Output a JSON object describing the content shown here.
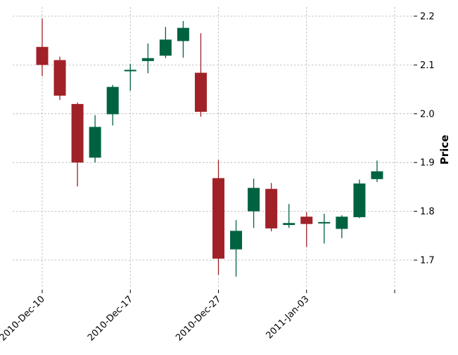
{
  "chart_data": {
    "type": "candlestick",
    "title": "",
    "xlabel": "",
    "ylabel": "Price",
    "y_axis_side": "right",
    "ylim": [
      1.64,
      2.23
    ],
    "yticks": [
      1.7,
      1.8,
      1.9,
      2.0,
      2.1,
      2.2
    ],
    "ytick_labels": [
      "1.7",
      "1.8",
      "1.9",
      "2.0",
      "2.1",
      "2.2"
    ],
    "xticks": [
      {
        "index": 0,
        "label": "2010-Dec-10"
      },
      {
        "index": 5,
        "label": "2010-Dec-17"
      },
      {
        "index": 10,
        "label": "2010-Dec-27"
      },
      {
        "index": 15,
        "label": "2011-Jan-03"
      },
      {
        "index": 20,
        "label": ""
      }
    ],
    "grid": true,
    "colors": {
      "up": "#006340",
      "down": "#a02128",
      "grid": "#b0b0b0"
    },
    "candles": [
      {
        "open": 2.137,
        "high": 2.195,
        "low": 2.077,
        "close": 2.1
      },
      {
        "open": 2.11,
        "high": 2.117,
        "low": 2.028,
        "close": 2.037
      },
      {
        "open": 2.02,
        "high": 2.023,
        "low": 1.851,
        "close": 1.9
      },
      {
        "open": 1.91,
        "high": 1.997,
        "low": 1.9,
        "close": 1.973
      },
      {
        "open": 1.999,
        "high": 2.059,
        "low": 1.976,
        "close": 2.055
      },
      {
        "open": 2.087,
        "high": 2.102,
        "low": 2.047,
        "close": 2.09
      },
      {
        "open": 2.108,
        "high": 2.144,
        "low": 2.083,
        "close": 2.114
      },
      {
        "open": 2.119,
        "high": 2.178,
        "low": 2.114,
        "close": 2.152
      },
      {
        "open": 2.149,
        "high": 2.19,
        "low": 2.115,
        "close": 2.176
      },
      {
        "open": 2.084,
        "high": 2.165,
        "low": 1.994,
        "close": 2.004
      },
      {
        "open": 1.868,
        "high": 1.905,
        "low": 1.67,
        "close": 1.703
      },
      {
        "open": 1.722,
        "high": 1.782,
        "low": 1.666,
        "close": 1.76
      },
      {
        "open": 1.8,
        "high": 1.867,
        "low": 1.766,
        "close": 1.848
      },
      {
        "open": 1.846,
        "high": 1.858,
        "low": 1.759,
        "close": 1.765
      },
      {
        "open": 1.772,
        "high": 1.815,
        "low": 1.766,
        "close": 1.776
      },
      {
        "open": 1.789,
        "high": 1.798,
        "low": 1.727,
        "close": 1.774
      },
      {
        "open": 1.777,
        "high": 1.795,
        "low": 1.734,
        "close": 1.778
      },
      {
        "open": 1.764,
        "high": 1.792,
        "low": 1.745,
        "close": 1.789
      },
      {
        "open": 1.788,
        "high": 1.865,
        "low": 1.786,
        "close": 1.857
      },
      {
        "open": 1.866,
        "high": 1.904,
        "low": 1.86,
        "close": 1.882
      }
    ]
  }
}
